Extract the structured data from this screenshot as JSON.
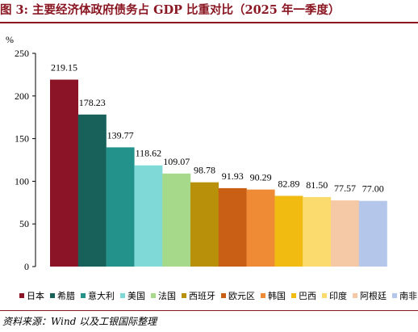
{
  "header": {
    "title": "图 3:  主要经济体政府债务占 GDP 比重对比（2025 年一季度）"
  },
  "footer": {
    "source": "资料来源：Wind 以及工银国际整理"
  },
  "chart_data": {
    "type": "bar",
    "unit_label": "%",
    "categories": [
      "日本",
      "希腊",
      "意大利",
      "美国",
      "法国",
      "西班牙",
      "欧元区",
      "韩国",
      "巴西",
      "印度",
      "阿根廷",
      "南非"
    ],
    "values": [
      219.15,
      178.23,
      139.77,
      118.62,
      109.07,
      98.78,
      91.93,
      90.29,
      82.89,
      81.5,
      77.57,
      77.0
    ],
    "value_labels": [
      "219.15",
      "178.23",
      "139.77",
      "118.62",
      "109.07",
      "98.78",
      "91.93",
      "90.29",
      "82.89",
      "81.50",
      "77.57",
      "77.00"
    ],
    "colors": [
      "#8b1426",
      "#18605a",
      "#22928a",
      "#7fd9d6",
      "#a6d98a",
      "#b8900a",
      "#c85f14",
      "#ef8b35",
      "#f1bb11",
      "#fbdb6e",
      "#f6c9a6",
      "#b4c6ea"
    ],
    "ylim": [
      0,
      250
    ],
    "yticks": [
      0,
      50,
      100,
      150,
      200,
      250
    ],
    "ytick_labels": [
      "0",
      "50",
      "100",
      "150",
      "200",
      "250"
    ],
    "grid": false,
    "legend": "bottom"
  }
}
